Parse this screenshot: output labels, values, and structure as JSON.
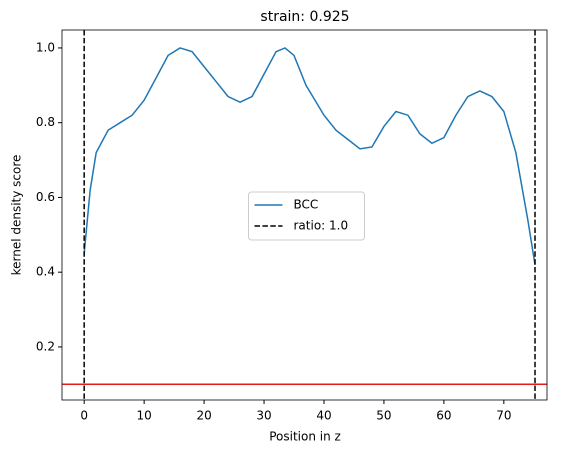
{
  "chart_data": {
    "type": "line",
    "title": "strain: 0.925",
    "xlabel": "Position in z",
    "ylabel": "kernel density score",
    "x": [
      0,
      1,
      2,
      4,
      6,
      8,
      10,
      12,
      14,
      16,
      18,
      20,
      22,
      24,
      26,
      28,
      30,
      32,
      33.5,
      35,
      37,
      40,
      42,
      44,
      46,
      48,
      50,
      52,
      54,
      56,
      58,
      60,
      62,
      64,
      66,
      68,
      70,
      72,
      74,
      75.2
    ],
    "series": [
      {
        "name": "BCC",
        "color": "#1f77b4",
        "values": [
          0.45,
          0.62,
          0.72,
          0.78,
          0.8,
          0.82,
          0.86,
          0.92,
          0.98,
          1.0,
          0.99,
          0.95,
          0.91,
          0.87,
          0.855,
          0.87,
          0.93,
          0.99,
          1.0,
          0.98,
          0.9,
          0.82,
          0.78,
          0.755,
          0.73,
          0.735,
          0.79,
          0.83,
          0.82,
          0.77,
          0.745,
          0.76,
          0.82,
          0.87,
          0.885,
          0.87,
          0.83,
          0.72,
          0.54,
          0.42
        ]
      }
    ],
    "vlines": {
      "name": "ratio: 1.0",
      "color": "#000000",
      "dashed": true,
      "values": [
        0,
        75.2
      ]
    },
    "hline": {
      "color": "#e41a1c",
      "value": 0.1
    },
    "xlim": [
      -3.7,
      77.2
    ],
    "ylim": [
      0.058,
      1.048
    ],
    "xticks": [
      0,
      10,
      20,
      30,
      40,
      50,
      60,
      70
    ],
    "yticks": [
      0.2,
      0.4,
      0.6,
      0.8,
      {
        "value": 1,
        "label": "1.0"
      }
    ],
    "legend": "center"
  }
}
